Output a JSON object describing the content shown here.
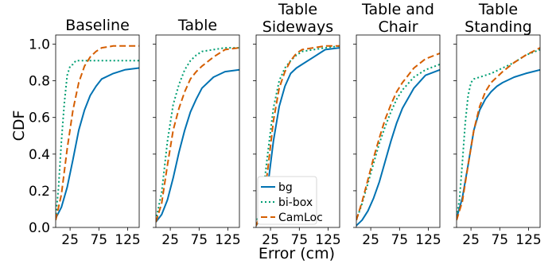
{
  "figure": {
    "ylabel": "CDF",
    "xlabel": "Error (cm)"
  },
  "chart_data": [
    {
      "type": "line",
      "title": [
        "Baseline"
      ],
      "xlim": [
        0,
        145
      ],
      "ylim": [
        0,
        1.05
      ],
      "xticks": [
        25,
        75,
        125
      ],
      "yticks": [
        0.0,
        0.2,
        0.4,
        0.6,
        0.8,
        1.0
      ],
      "series": [
        {
          "name": "bg",
          "color": "#0072B2",
          "style": "solid",
          "points": [
            [
              0,
              0.05
            ],
            [
              10,
              0.11
            ],
            [
              20,
              0.22
            ],
            [
              30,
              0.37
            ],
            [
              40,
              0.53
            ],
            [
              50,
              0.64
            ],
            [
              60,
              0.72
            ],
            [
              70,
              0.77
            ],
            [
              80,
              0.81
            ],
            [
              100,
              0.84
            ],
            [
              120,
              0.86
            ],
            [
              145,
              0.87
            ]
          ]
        },
        {
          "name": "bi-box",
          "color": "#009E73",
          "style": "dotted",
          "points": [
            [
              0,
              0.05
            ],
            [
              5,
              0.22
            ],
            [
              10,
              0.47
            ],
            [
              15,
              0.68
            ],
            [
              20,
              0.83
            ],
            [
              25,
              0.88
            ],
            [
              30,
              0.89
            ],
            [
              35,
              0.91
            ],
            [
              145,
              0.91
            ]
          ]
        },
        {
          "name": "CamLoc",
          "color": "#D55E00",
          "style": "dashed",
          "points": [
            [
              0,
              0.04
            ],
            [
              10,
              0.18
            ],
            [
              20,
              0.43
            ],
            [
              30,
              0.64
            ],
            [
              40,
              0.79
            ],
            [
              50,
              0.88
            ],
            [
              60,
              0.93
            ],
            [
              70,
              0.96
            ],
            [
              80,
              0.98
            ],
            [
              100,
              0.99
            ],
            [
              145,
              0.99
            ]
          ]
        }
      ]
    },
    {
      "type": "line",
      "title": [
        "Table"
      ],
      "xlim": [
        0,
        145
      ],
      "ylim": [
        0,
        1.05
      ],
      "xticks": [
        25,
        75,
        125
      ],
      "yticks": [
        0.0,
        0.2,
        0.4,
        0.6,
        0.8,
        1.0
      ],
      "series": [
        {
          "name": "bg",
          "color": "#0072B2",
          "style": "solid",
          "points": [
            [
              0,
              0.03
            ],
            [
              10,
              0.07
            ],
            [
              20,
              0.15
            ],
            [
              30,
              0.27
            ],
            [
              40,
              0.41
            ],
            [
              50,
              0.53
            ],
            [
              60,
              0.63
            ],
            [
              70,
              0.7
            ],
            [
              80,
              0.76
            ],
            [
              100,
              0.82
            ],
            [
              120,
              0.85
            ],
            [
              145,
              0.86
            ]
          ]
        },
        {
          "name": "bi-box",
          "color": "#009E73",
          "style": "dotted",
          "points": [
            [
              0,
              0.04
            ],
            [
              10,
              0.19
            ],
            [
              20,
              0.47
            ],
            [
              30,
              0.67
            ],
            [
              40,
              0.78
            ],
            [
              50,
              0.86
            ],
            [
              60,
              0.91
            ],
            [
              70,
              0.94
            ],
            [
              80,
              0.96
            ],
            [
              100,
              0.97
            ],
            [
              120,
              0.98
            ],
            [
              145,
              0.98
            ]
          ]
        },
        {
          "name": "CamLoc",
          "color": "#D55E00",
          "style": "dashed",
          "points": [
            [
              0,
              0.03
            ],
            [
              10,
              0.13
            ],
            [
              20,
              0.34
            ],
            [
              30,
              0.53
            ],
            [
              40,
              0.65
            ],
            [
              50,
              0.74
            ],
            [
              60,
              0.81
            ],
            [
              70,
              0.85
            ],
            [
              80,
              0.88
            ],
            [
              100,
              0.93
            ],
            [
              120,
              0.97
            ],
            [
              145,
              0.98
            ]
          ]
        }
      ]
    },
    {
      "type": "line",
      "title": [
        "Table",
        "Sideways"
      ],
      "xlim": [
        0,
        145
      ],
      "ylim": [
        0,
        1.05
      ],
      "xticks": [
        25,
        75,
        125
      ],
      "yticks": [
        0.0,
        0.2,
        0.4,
        0.6,
        0.8,
        1.0
      ],
      "series": [
        {
          "name": "bg",
          "color": "#0072B2",
          "style": "solid",
          "points": [
            [
              0,
              0.01
            ],
            [
              10,
              0.06
            ],
            [
              20,
              0.22
            ],
            [
              30,
              0.47
            ],
            [
              40,
              0.66
            ],
            [
              50,
              0.77
            ],
            [
              60,
              0.84
            ],
            [
              70,
              0.87
            ],
            [
              80,
              0.89
            ],
            [
              100,
              0.93
            ],
            [
              120,
              0.97
            ],
            [
              145,
              0.98
            ]
          ]
        },
        {
          "name": "bi-box",
          "color": "#009E73",
          "style": "dotted",
          "points": [
            [
              0,
              0.02
            ],
            [
              10,
              0.13
            ],
            [
              20,
              0.4
            ],
            [
              30,
              0.65
            ],
            [
              40,
              0.8
            ],
            [
              50,
              0.87
            ],
            [
              60,
              0.91
            ],
            [
              70,
              0.94
            ],
            [
              80,
              0.96
            ],
            [
              100,
              0.97
            ],
            [
              120,
              0.98
            ],
            [
              145,
              0.99
            ]
          ]
        },
        {
          "name": "CamLoc",
          "color": "#D55E00",
          "style": "dashed",
          "points": [
            [
              0,
              0.01
            ],
            [
              10,
              0.09
            ],
            [
              20,
              0.31
            ],
            [
              30,
              0.58
            ],
            [
              40,
              0.76
            ],
            [
              50,
              0.85
            ],
            [
              60,
              0.91
            ],
            [
              70,
              0.95
            ],
            [
              80,
              0.97
            ],
            [
              100,
              0.98
            ],
            [
              120,
              0.99
            ],
            [
              145,
              0.99
            ]
          ]
        }
      ]
    },
    {
      "type": "line",
      "title": [
        "Table and",
        "Chair"
      ],
      "xlim": [
        0,
        145
      ],
      "ylim": [
        0,
        1.05
      ],
      "xticks": [
        25,
        75,
        125
      ],
      "yticks": [
        0.0,
        0.2,
        0.4,
        0.6,
        0.8,
        1.0
      ],
      "series": [
        {
          "name": "bg",
          "color": "#0072B2",
          "style": "solid",
          "points": [
            [
              0,
              0.01
            ],
            [
              10,
              0.04
            ],
            [
              20,
              0.09
            ],
            [
              30,
              0.16
            ],
            [
              40,
              0.25
            ],
            [
              50,
              0.36
            ],
            [
              60,
              0.47
            ],
            [
              70,
              0.57
            ],
            [
              80,
              0.65
            ],
            [
              100,
              0.76
            ],
            [
              120,
              0.83
            ],
            [
              145,
              0.86
            ]
          ]
        },
        {
          "name": "bi-box",
          "color": "#009E73",
          "style": "dotted",
          "points": [
            [
              0,
              0.04
            ],
            [
              10,
              0.13
            ],
            [
              20,
              0.24
            ],
            [
              30,
              0.35
            ],
            [
              40,
              0.46
            ],
            [
              50,
              0.55
            ],
            [
              60,
              0.63
            ],
            [
              70,
              0.7
            ],
            [
              80,
              0.75
            ],
            [
              100,
              0.82
            ],
            [
              120,
              0.86
            ],
            [
              145,
              0.89
            ]
          ]
        },
        {
          "name": "CamLoc",
          "color": "#D55E00",
          "style": "dashed",
          "points": [
            [
              0,
              0.04
            ],
            [
              10,
              0.14
            ],
            [
              20,
              0.26
            ],
            [
              30,
              0.38
            ],
            [
              40,
              0.49
            ],
            [
              50,
              0.59
            ],
            [
              60,
              0.67
            ],
            [
              70,
              0.74
            ],
            [
              80,
              0.79
            ],
            [
              100,
              0.87
            ],
            [
              120,
              0.92
            ],
            [
              145,
              0.95
            ]
          ]
        }
      ]
    },
    {
      "type": "line",
      "title": [
        "Table",
        "Standing"
      ],
      "xlim": [
        0,
        145
      ],
      "ylim": [
        0,
        1.05
      ],
      "xticks": [
        25,
        75,
        125
      ],
      "yticks": [
        0.0,
        0.2,
        0.4,
        0.6,
        0.8,
        1.0
      ],
      "series": [
        {
          "name": "bg",
          "color": "#0072B2",
          "style": "solid",
          "points": [
            [
              0,
              0.05
            ],
            [
              10,
              0.16
            ],
            [
              20,
              0.34
            ],
            [
              30,
              0.53
            ],
            [
              40,
              0.64
            ],
            [
              50,
              0.7
            ],
            [
              60,
              0.74
            ],
            [
              70,
              0.77
            ],
            [
              80,
              0.79
            ],
            [
              100,
              0.82
            ],
            [
              120,
              0.84
            ],
            [
              145,
              0.86
            ]
          ]
        },
        {
          "name": "bi-box",
          "color": "#009E73",
          "style": "dotted",
          "points": [
            [
              0,
              0.06
            ],
            [
              5,
              0.15
            ],
            [
              10,
              0.35
            ],
            [
              15,
              0.57
            ],
            [
              20,
              0.72
            ],
            [
              25,
              0.79
            ],
            [
              30,
              0.81
            ],
            [
              40,
              0.82
            ],
            [
              50,
              0.83
            ],
            [
              60,
              0.84
            ],
            [
              80,
              0.87
            ],
            [
              100,
              0.9
            ],
            [
              120,
              0.94
            ],
            [
              145,
              0.97
            ]
          ]
        },
        {
          "name": "CamLoc",
          "color": "#D55E00",
          "style": "dashed",
          "points": [
            [
              0,
              0.04
            ],
            [
              10,
              0.14
            ],
            [
              20,
              0.34
            ],
            [
              30,
              0.53
            ],
            [
              40,
              0.66
            ],
            [
              50,
              0.74
            ],
            [
              60,
              0.79
            ],
            [
              70,
              0.82
            ],
            [
              80,
              0.85
            ],
            [
              100,
              0.9
            ],
            [
              120,
              0.94
            ],
            [
              145,
              0.98
            ]
          ]
        }
      ]
    }
  ]
}
